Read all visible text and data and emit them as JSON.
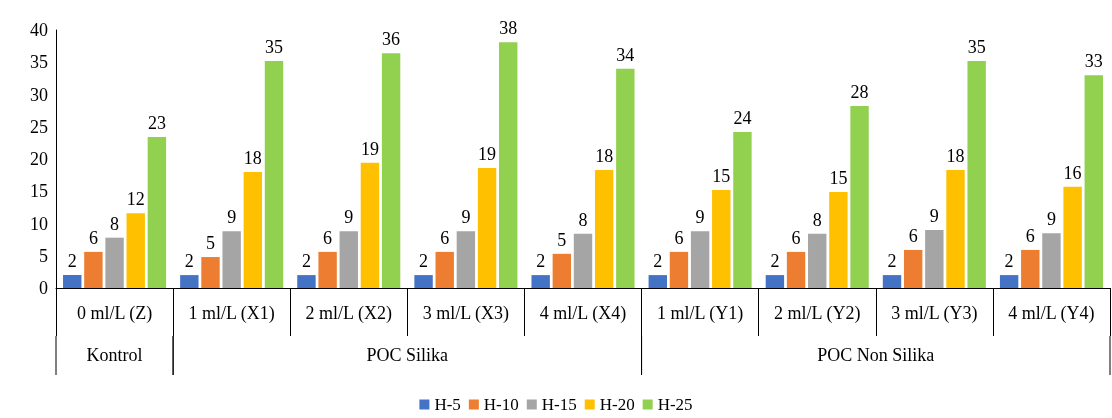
{
  "chart_data": {
    "type": "bar",
    "categories": [
      "0 ml/L (Z)",
      "1 ml/L (X1)",
      "2 ml/L (X2)",
      "3 ml/L (X3)",
      "4 ml/L (X4)",
      "1 ml/L (Y1)",
      "2 ml/L (Y2)",
      "3 ml/L (Y3)",
      "4 ml/L (Y4)"
    ],
    "annotations": [
      "Kontrol",
      "POC Silika",
      "POC Non Silika"
    ],
    "series": [
      {
        "name": "H-5",
        "color": "#4472c4",
        "values": [
          2,
          2,
          2,
          2,
          2,
          2,
          2,
          2,
          2
        ],
        "value_labels": [
          "2",
          "2",
          "2",
          "2",
          "2",
          "2",
          "2",
          "2",
          "2"
        ]
      },
      {
        "name": "H-10",
        "color": "#ed7d31",
        "values": [
          5.6,
          4.8,
          5.6,
          5.6,
          5.3,
          5.6,
          5.6,
          5.9,
          5.9
        ],
        "value_labels": [
          "6",
          "5",
          "6",
          "6",
          "5",
          "6",
          "6",
          "6",
          "6"
        ]
      },
      {
        "name": "H-15",
        "color": "#a5a5a5",
        "values": [
          7.8,
          8.8,
          8.8,
          8.8,
          8.4,
          8.8,
          8.4,
          9.0,
          8.5
        ],
        "value_labels": [
          "8",
          "9",
          "9",
          "9",
          "8",
          "9",
          "8",
          "9",
          "9"
        ]
      },
      {
        "name": "H-20",
        "color": "#ffc000",
        "values": [
          11.6,
          18.0,
          19.4,
          18.6,
          18.3,
          15.2,
          14.9,
          18.3,
          15.7
        ],
        "value_labels": [
          "12",
          "18",
          "19",
          "19",
          "18",
          "15",
          "15",
          "18",
          "16"
        ]
      },
      {
        "name": "H-25",
        "color": "#92d050",
        "values": [
          23.4,
          35.2,
          36.4,
          38.1,
          34.0,
          24.2,
          28.2,
          35.2,
          33.0
        ],
        "value_labels": [
          "23",
          "35",
          "36",
          "38",
          "34",
          "24",
          "28",
          "35",
          "33"
        ]
      }
    ],
    "ylim": [
      0,
      40
    ],
    "yticks": [
      0,
      5,
      10,
      15,
      20,
      25,
      30,
      35,
      40
    ],
    "grid": false,
    "legend": "bottom"
  }
}
